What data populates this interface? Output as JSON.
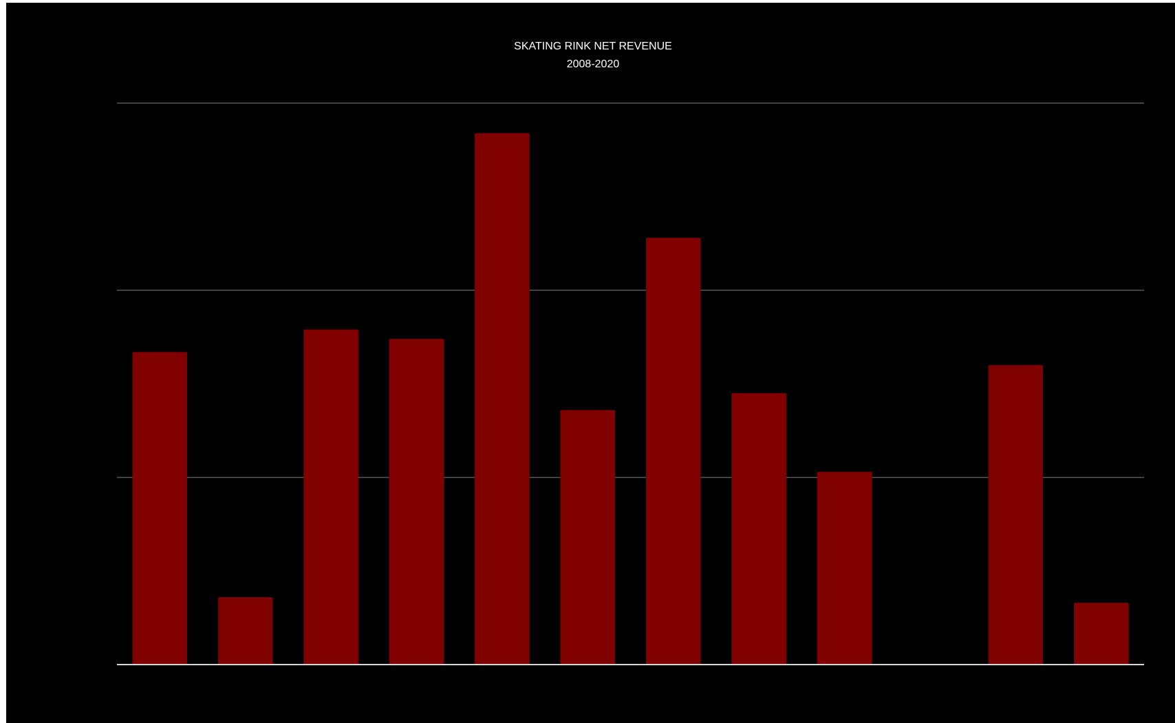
{
  "chart_data": {
    "type": "bar",
    "title": "SKATING RINK NET REVENUE",
    "subtitle": "2008-2020",
    "categories": [
      "",
      "",
      "",
      "",
      "",
      "",
      "",
      "",
      "",
      "",
      "",
      ""
    ],
    "values": [
      167,
      36,
      179,
      174,
      284,
      136,
      228,
      145,
      103,
      0,
      160,
      33
    ],
    "ylim": [
      0,
      300
    ],
    "gridlines": [
      100,
      200,
      300
    ],
    "grid": true,
    "legend": "none",
    "colors": {
      "background": "#000000",
      "bar": "#800000",
      "gridline": "#595959",
      "baseline": "#d9d9d9",
      "text": "#ffffff"
    }
  }
}
